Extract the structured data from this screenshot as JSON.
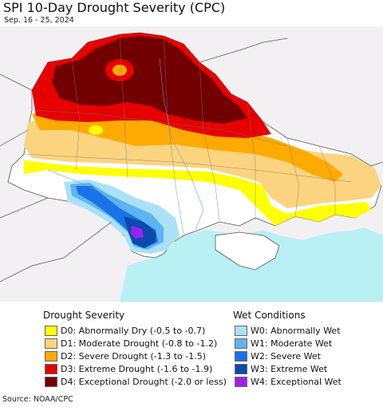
{
  "header": {
    "title": "SPI 10-Day Drought Severity (CPC)",
    "subtitle": "Sep. 16 - 25, 2024"
  },
  "colors": {
    "background": "#f2f0f3",
    "sea": "#b8f0f4",
    "neutral": "#ffffff",
    "D0": "#ffff00",
    "D1": "#fcd37f",
    "D2": "#ffaa00",
    "D3": "#e60000",
    "D4": "#730000",
    "W0": "#aae1f7",
    "W1": "#5eb4f0",
    "W2": "#1a72e6",
    "W3": "#0b4aad",
    "W4": "#a020f0"
  },
  "legend": {
    "drought_title": "Drought Severity",
    "wet_title": "Wet Conditions",
    "drought_items": [
      {
        "code": "D0",
        "label": "D0: Abnormally Dry (-0.5 to -0.7)",
        "color": "#ffff00"
      },
      {
        "code": "D1",
        "label": "D1: Moderate Drought (-0.8 to -1.2)",
        "color": "#fcd37f"
      },
      {
        "code": "D2",
        "label": "D2: Severe Drought (-1.3 to -1.5)",
        "color": "#ffaa00"
      },
      {
        "code": "D3",
        "label": "D3: Extreme Drought (-1.6 to -1.9)",
        "color": "#e60000"
      },
      {
        "code": "D4",
        "label": "D4: Exceptional Drought (-2.0 or less)",
        "color": "#730000"
      }
    ],
    "wet_items": [
      {
        "code": "W0",
        "label": "W0: Abnormally Wet",
        "color": "#aae1f7"
      },
      {
        "code": "W1",
        "label": "W1: Moderate Wet",
        "color": "#5eb4f0"
      },
      {
        "code": "W2",
        "label": "W2: Severe Wet",
        "color": "#1a72e6"
      },
      {
        "code": "W3",
        "label": "W3: Extreme Wet",
        "color": "#0b4aad"
      },
      {
        "code": "W4",
        "label": "W4: Exceptional Wet",
        "color": "#a020f0"
      }
    ]
  },
  "footer": {
    "source": "Source: NOAA/CPC"
  }
}
